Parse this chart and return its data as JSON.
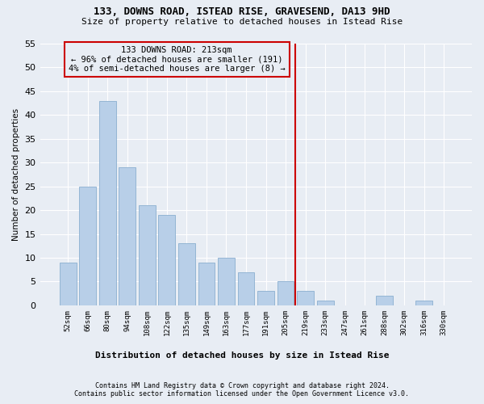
{
  "title1": "133, DOWNS ROAD, ISTEAD RISE, GRAVESEND, DA13 9HD",
  "title2": "Size of property relative to detached houses in Istead Rise",
  "xlabel_bottom": "Distribution of detached houses by size in Istead Rise",
  "ylabel": "Number of detached properties",
  "categories": [
    "52sqm",
    "66sqm",
    "80sqm",
    "94sqm",
    "108sqm",
    "122sqm",
    "135sqm",
    "149sqm",
    "163sqm",
    "177sqm",
    "191sqm",
    "205sqm",
    "219sqm",
    "233sqm",
    "247sqm",
    "261sqm",
    "288sqm",
    "302sqm",
    "316sqm",
    "330sqm"
  ],
  "values": [
    9,
    25,
    43,
    29,
    21,
    19,
    13,
    9,
    10,
    7,
    3,
    5,
    3,
    1,
    0,
    0,
    2,
    0,
    1,
    0
  ],
  "bar_color": "#b8cfe8",
  "bar_edge_color": "#8aafd0",
  "background_color": "#e8edf4",
  "grid_color": "#ffffff",
  "vline_index": 11.5,
  "vline_color": "#cc0000",
  "annotation_text": "133 DOWNS ROAD: 213sqm\n← 96% of detached houses are smaller (191)\n4% of semi-detached houses are larger (8) →",
  "annotation_box_color": "#cc0000",
  "footer1": "Contains HM Land Registry data © Crown copyright and database right 2024.",
  "footer2": "Contains public sector information licensed under the Open Government Licence v3.0.",
  "ylim": [
    0,
    55
  ],
  "yticks": [
    0,
    5,
    10,
    15,
    20,
    25,
    30,
    35,
    40,
    45,
    50,
    55
  ]
}
